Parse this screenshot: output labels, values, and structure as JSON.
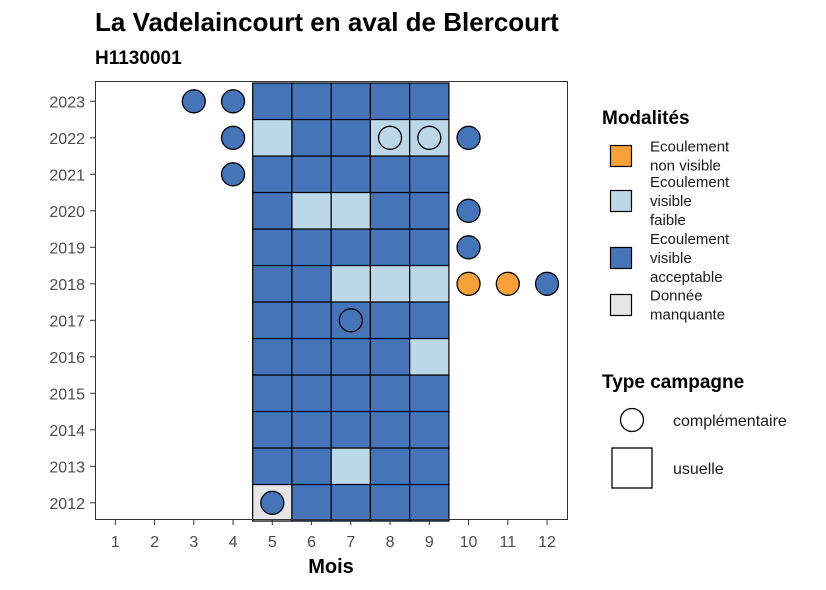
{
  "chart_data": {
    "type": "heatmap",
    "title": "La Vadelaincourt en aval de Blercourt",
    "subtitle": "H1130001",
    "xlabel": "Mois",
    "ylabel": "",
    "x": [
      1,
      2,
      3,
      4,
      5,
      6,
      7,
      8,
      9,
      10,
      11,
      12
    ],
    "y": [
      2012,
      2013,
      2014,
      2015,
      2016,
      2017,
      2018,
      2019,
      2020,
      2021,
      2022,
      2023
    ],
    "legend_placement": "right",
    "grid": false,
    "colors": {
      "Ecoulement non visible": "#f7a13a",
      "Ecoulement visible faible": "#bcd7e8",
      "Ecoulement visible acceptable": "#4574b8",
      "Donnée manquante": "#e6e6e6"
    },
    "legend": {
      "modalites_title": "Modalités",
      "modalites": [
        {
          "key": "Ecoulement non visible",
          "lines": [
            "Ecoulement",
            "non visible"
          ]
        },
        {
          "key": "Ecoulement visible faible",
          "lines": [
            "Ecoulement",
            "visible",
            "faible"
          ]
        },
        {
          "key": "Ecoulement visible acceptable",
          "lines": [
            "Ecoulement",
            "visible",
            "acceptable"
          ]
        },
        {
          "key": "Donnée manquante",
          "lines": [
            "Donnée",
            "manquante"
          ]
        }
      ],
      "type_title": "Type campagne",
      "types": [
        {
          "key": "complémentaire",
          "shape": "circle"
        },
        {
          "key": "usuelle",
          "shape": "square"
        }
      ]
    },
    "usuelle": [
      {
        "year": 2023,
        "months": {
          "5": "A",
          "6": "A",
          "7": "A",
          "8": "A",
          "9": "A"
        }
      },
      {
        "year": 2022,
        "months": {
          "5": "F",
          "6": "A",
          "7": "A",
          "8": "F",
          "9": "F"
        }
      },
      {
        "year": 2021,
        "months": {
          "5": "A",
          "6": "A",
          "7": "A",
          "8": "A",
          "9": "A"
        }
      },
      {
        "year": 2020,
        "months": {
          "5": "A",
          "6": "F",
          "7": "F",
          "8": "A",
          "9": "A"
        }
      },
      {
        "year": 2019,
        "months": {
          "5": "A",
          "6": "A",
          "7": "A",
          "8": "A",
          "9": "A"
        }
      },
      {
        "year": 2018,
        "months": {
          "5": "A",
          "6": "A",
          "7": "F",
          "8": "F",
          "9": "F"
        }
      },
      {
        "year": 2017,
        "months": {
          "5": "A",
          "6": "A",
          "7": "A",
          "8": "A",
          "9": "A"
        }
      },
      {
        "year": 2016,
        "months": {
          "5": "A",
          "6": "A",
          "7": "A",
          "8": "A",
          "9": "F"
        }
      },
      {
        "year": 2015,
        "months": {
          "5": "A",
          "6": "A",
          "7": "A",
          "8": "A",
          "9": "A"
        }
      },
      {
        "year": 2014,
        "months": {
          "5": "A",
          "6": "A",
          "7": "A",
          "8": "A",
          "9": "A"
        }
      },
      {
        "year": 2013,
        "months": {
          "5": "A",
          "6": "A",
          "7": "F",
          "8": "A",
          "9": "A"
        }
      },
      {
        "year": 2012,
        "months": {
          "5": "M",
          "6": "A",
          "7": "A",
          "8": "A",
          "9": "A"
        }
      }
    ],
    "complementaire": [
      {
        "year": 2023,
        "month": 3,
        "value": "A"
      },
      {
        "year": 2023,
        "month": 4,
        "value": "A"
      },
      {
        "year": 2022,
        "month": 4,
        "value": "A"
      },
      {
        "year": 2022,
        "month": 8,
        "value": "F"
      },
      {
        "year": 2022,
        "month": 9,
        "value": "F"
      },
      {
        "year": 2022,
        "month": 10,
        "value": "A"
      },
      {
        "year": 2021,
        "month": 4,
        "value": "A"
      },
      {
        "year": 2020,
        "month": 10,
        "value": "A"
      },
      {
        "year": 2019,
        "month": 10,
        "value": "A"
      },
      {
        "year": 2018,
        "month": 10,
        "value": "N"
      },
      {
        "year": 2018,
        "month": 11,
        "value": "N"
      },
      {
        "year": 2018,
        "month": 12,
        "value": "A"
      },
      {
        "year": 2017,
        "month": 7,
        "value": "A"
      },
      {
        "year": 2012,
        "month": 5,
        "value": "A"
      }
    ],
    "codes": {
      "N": "Ecoulement non visible",
      "F": "Ecoulement visible faible",
      "A": "Ecoulement visible acceptable",
      "M": "Donnée manquante"
    }
  }
}
